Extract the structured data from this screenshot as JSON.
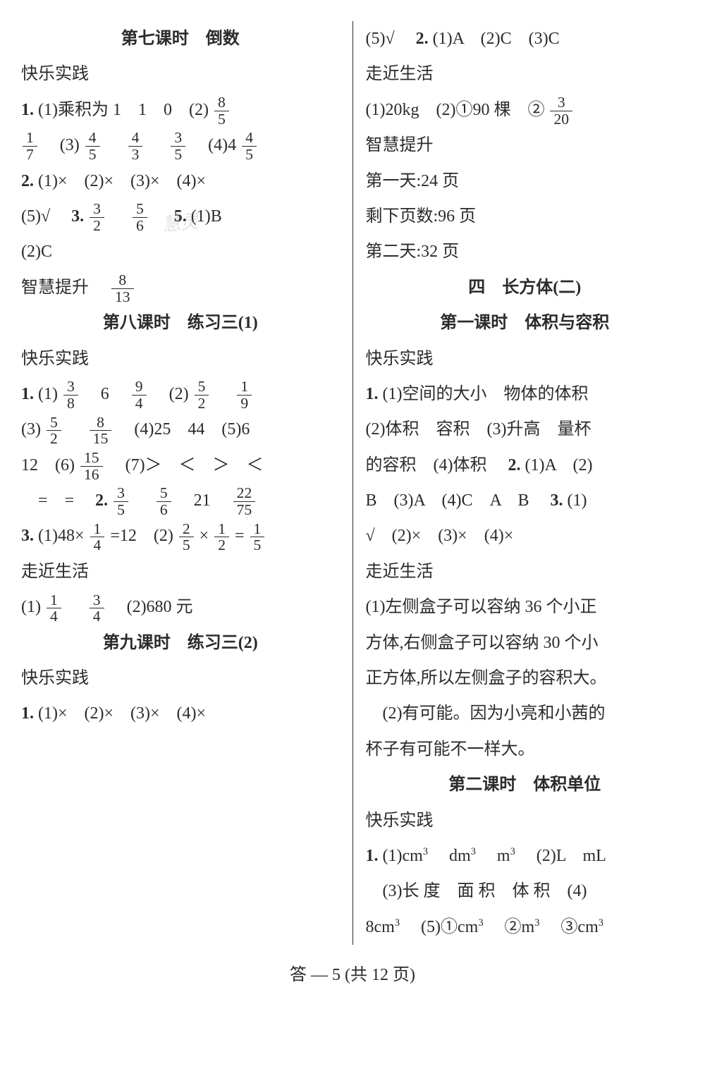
{
  "left": {
    "h7": "第七课时　倒数",
    "klsj": "快乐实践",
    "l1": "(1)乘积为 1　1　0　(2)",
    "l1_f1": {
      "n": "8",
      "d": "5"
    },
    "l2_f1": {
      "n": "1",
      "d": "7"
    },
    "l2_a": "　(3)",
    "l2_f2": {
      "n": "4",
      "d": "5"
    },
    "l2_b": "　",
    "l2_f3": {
      "n": "4",
      "d": "3"
    },
    "l2_c": "　",
    "l2_f4": {
      "n": "3",
      "d": "5"
    },
    "l2_d": "　(4)4 ",
    "l2_f5": {
      "n": "4",
      "d": "5"
    },
    "l3": "(1)×　(2)×　(3)×　(4)×",
    "l4_a": "(5)√　",
    "l4_b": " ",
    "l4_f1": {
      "n": "3",
      "d": "2"
    },
    "l4_c": "　",
    "l4_f2": {
      "n": "5",
      "d": "6"
    },
    "l4_d": "　",
    "l4_e": "(1)B",
    "l5": "(2)C",
    "zhts": "智慧提升　",
    "zhts_f": {
      "n": "8",
      "d": "13"
    },
    "h8": "第八课时　练习三(1)",
    "p8_1a": "(1)",
    "p8_1f1": {
      "n": "3",
      "d": "8"
    },
    "p8_1b": "　6　",
    "p8_1f2": {
      "n": "9",
      "d": "4"
    },
    "p8_1c": "　(2)",
    "p8_1f3": {
      "n": "5",
      "d": "2"
    },
    "p8_1d": "　",
    "p8_1f4": {
      "n": "1",
      "d": "9"
    },
    "p8_2a": "(3)",
    "p8_2f1": {
      "n": "5",
      "d": "2"
    },
    "p8_2b": "　",
    "p8_2f2": {
      "n": "8",
      "d": "15"
    },
    "p8_2c": "　(4)25　44　(5)6",
    "p8_3a": "12　(6)",
    "p8_3f1": {
      "n": "15",
      "d": "16"
    },
    "p8_3b": "　(7)＞　＜　＞　＜",
    "p8_4a": "　=　=　",
    "p8_4b": " ",
    "p8_4f1": {
      "n": "3",
      "d": "5"
    },
    "p8_4c": "　",
    "p8_4f2": {
      "n": "5",
      "d": "6"
    },
    "p8_4d": "　21　",
    "p8_4f3": {
      "n": "22",
      "d": "75"
    },
    "p8_5a": "(1)48×",
    "p8_5f1": {
      "n": "1",
      "d": "4"
    },
    "p8_5b": "=12　(2)",
    "p8_5f2": {
      "n": "2",
      "d": "5"
    },
    "p8_5c": "×",
    "p8_5f3": {
      "n": "1",
      "d": "2"
    },
    "p8_5d": "=",
    "p8_5f4": {
      "n": "1",
      "d": "5"
    },
    "zjsh": "走近生活",
    "p8_6a": "(1)",
    "p8_6f1": {
      "n": "1",
      "d": "4"
    },
    "p8_6b": "　",
    "p8_6f2": {
      "n": "3",
      "d": "4"
    },
    "p8_6c": "　(2)680 元",
    "h9": "第九课时　练习三(2)",
    "p9_1": "(1)×　(2)×　(3)×　(4)×",
    "num1": "1.",
    "num2": "2.",
    "num3": "3.",
    "num5": "5."
  },
  "right": {
    "r1a": "(5)√　",
    "r1b": "(1)A　(2)C　(3)C",
    "zjsh": "走近生活",
    "r2a": "(1)20kg　(2)①90 棵　②",
    "r2f1": {
      "n": "3",
      "d": "20"
    },
    "zhts": "智慧提升",
    "r3": "第一天:24 页",
    "r4": "剩下页数:96 页",
    "r5": "第二天:32 页",
    "h4": "四　长方体(二)",
    "h4_1": "第一课时　体积与容积",
    "klsj": "快乐实践",
    "q1a": "(1)空间的大小　物体的体积",
    "q1b": "(2)体积　容积　(3)升高　量杯",
    "q1c": "的容积　(4)体积　",
    "q1d": "(1)A　(2)",
    "q1e": "B　(3)A　(4)C　A　B　",
    "q1f": "(1)",
    "q1g": "√　(2)×　(3)×　(4)×",
    "q2a": "(1)左侧盒子可以容纳 36 个小正",
    "q2b": "方体,右侧盒子可以容纳 30 个小",
    "q2c": "正方体,所以左侧盒子的容积大。",
    "q2d": "　(2)有可能。因为小亮和小茜的",
    "q2e": "杯子有可能不一样大。",
    "h4_2": "第二课时　体积单位",
    "u1a": "(1)cm",
    "u1b": "　dm",
    "u1c": "　m",
    "u1d": "　(2)L　mL",
    "u2": "　(3)长 度　面 积　体 积　(4)",
    "u3a": "8cm",
    "u3b": "　(5)①cm",
    "u3c": "　②m",
    "u3d": "　③cm",
    "sup3": "3",
    "num1": "1.",
    "num2": "2.",
    "num3": "3."
  },
  "footer": "答 — 5 (共 12 页)"
}
